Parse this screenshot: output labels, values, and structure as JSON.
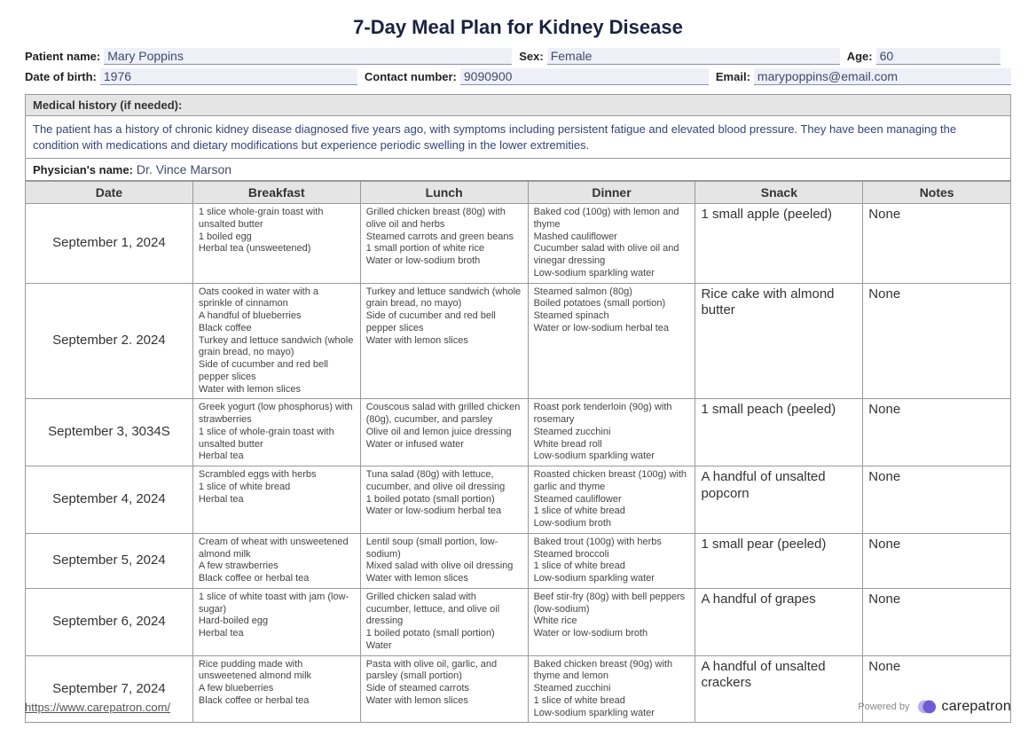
{
  "title": "7-Day Meal Plan for Kidney Disease",
  "labels": {
    "patient_name": "Patient name:",
    "sex": "Sex:",
    "age": "Age:",
    "dob": "Date of birth:",
    "contact": "Contact number:",
    "email": "Email:",
    "history": "Medical history (if needed):",
    "physician": "Physician's name:",
    "footer_url": "https://www.carepatron.com/",
    "powered": "Powered by",
    "brand": "carepatron"
  },
  "patient": {
    "name": "Mary Poppins",
    "sex": "Female",
    "age": "60",
    "dob": "1976",
    "contact": "9090900",
    "email": "marypoppins@email.com"
  },
  "history": "The patient has a history of chronic kidney disease diagnosed five years ago, with symptoms including persistent fatigue and elevated blood pressure. They have been managing the condition with medications and dietary modifications but experience periodic swelling in the lower extremities.",
  "physician": "Dr. Vince Marson",
  "columns": [
    "Date",
    "Breakfast",
    "Lunch",
    "Dinner",
    "Snack",
    "Notes"
  ],
  "rows": [
    {
      "date": "September 1, 2024",
      "bfs": "fs12",
      "breakfast": [
        "1 slice whole-grain toast with unsalted butter",
        "1 boiled egg",
        "Herbal tea (unsweetened)"
      ],
      "lfs": "fs10",
      "lunch": [
        "Grilled chicken breast (80g) with olive oil and herbs",
        "Steamed carrots and green beans",
        "1 small portion of white rice",
        "Water or low-sodium broth"
      ],
      "dfs": "fs10",
      "dinner": [
        "Baked cod (100g) with lemon and thyme",
        "Mashed cauliflower",
        "Cucumber salad with olive oil and vinegar dressing",
        "Low-sodium sparkling water"
      ],
      "snack": "1 small apple (peeled)",
      "notes": "None"
    },
    {
      "date": "September 2. 2024",
      "bfs": "fs8",
      "breakfast": [
        "Oats cooked in water with a sprinkle of cinnamon",
        "A handful of blueberries",
        "Black coffee",
        "Turkey and lettuce sandwich (whole grain bread, no mayo)",
        "Side of cucumber and red bell pepper slices",
        "Water with lemon slices"
      ],
      "lfs": "fs11",
      "lunch": [
        "Turkey and lettuce sandwich (whole grain bread, no mayo)",
        "Side of cucumber and red bell pepper slices",
        "Water with lemon slices"
      ],
      "dfs": "fs11",
      "dinner": [
        "Steamed salmon (80g)",
        "Boiled potatoes (small portion)",
        "Steamed spinach",
        "Water or low-sodium herbal tea"
      ],
      "snack": "Rice cake with almond butter",
      "notes": "None"
    },
    {
      "date": "September 3, 3034S",
      "bfs": "fs10",
      "breakfast": [
        "Greek yogurt (low phosphorus) with strawberries",
        "1 slice of whole-grain toast with unsalted butter",
        "Herbal tea"
      ],
      "lfs": "fs12",
      "lunch": [
        "Couscous salad with grilled chicken (80g), cucumber, and parsley",
        "Olive oil and lemon juice dressing",
        "Water or infused water"
      ],
      "dfs": "fs10",
      "dinner": [
        "Roast pork tenderloin (90g) with rosemary",
        "Steamed zucchini",
        "White bread roll",
        "Low-sodium sparkling water"
      ],
      "snack": "1 small peach (peeled)",
      "notes": "None"
    },
    {
      "date": "September 4, 2024",
      "bfs": "fs13",
      "breakfast": [
        "Scrambled eggs with herbs",
        "1 slice of white bread",
        "Herbal tea"
      ],
      "lfs": "fs12",
      "lunch": [
        "Tuna salad (80g) with lettuce, cucumber, and olive oil dressing",
        "1 boiled potato (small portion)",
        "Water or low-sodium herbal tea"
      ],
      "dfs": "fs10",
      "dinner": [
        "Roasted chicken breast (100g) with garlic and thyme",
        "Steamed cauliflower",
        "1 slice of white bread",
        "Low-sodium broth"
      ],
      "snack": "A handful of unsalted popcorn",
      "notes": "None"
    },
    {
      "date": "September 5, 2024",
      "bfs": "fs11",
      "breakfast": [
        "Cream of wheat with unsweetened almond milk",
        "A few strawberries",
        "Black coffee or herbal tea"
      ],
      "lfs": "fs12",
      "lunch": [
        "Lentil soup (small portion, low-sodium)",
        "Mixed salad with olive oil dressing",
        "Water with lemon slices"
      ],
      "dfs": "fs11",
      "dinner": [
        "Baked trout (100g) with herbs",
        "Steamed broccoli",
        "1 slice of white bread",
        "Low-sodium sparkling water"
      ],
      "snack": "1 small pear (peeled)",
      "notes": "None"
    },
    {
      "date": "September 6, 2024",
      "bfs": "fs11",
      "breakfast": [
        "1 slice of white toast with jam (low-sugar)",
        "Hard-boiled egg",
        "Herbal tea"
      ],
      "lfs": "fs12",
      "lunch": [
        "Grilled chicken salad with cucumber, lettuce, and olive oil dressing",
        "1 boiled potato (small portion)",
        "Water"
      ],
      "dfs": "fs11",
      "dinner": [
        "Beef stir-fry (80g) with bell peppers (low-sodium)",
        "White rice",
        "Water or low-sodium broth"
      ],
      "snack": "A handful of grapes",
      "notes": "None"
    },
    {
      "date": "September 7, 2024",
      "bfs": "fs11",
      "breakfast": [
        "Rice pudding made with unsweetened almond milk",
        "A few blueberries",
        "Black coffee or herbal tea"
      ],
      "lfs": "fs12",
      "lunch": [
        "Pasta with olive oil, garlic, and parsley (small portion)",
        "Side of steamed carrots",
        "Water with lemon slices"
      ],
      "dfs": "fs10",
      "dinner": [
        "Baked chicken breast (90g) with thyme and lemon",
        "Steamed zucchini",
        "1 slice of white bread",
        "Low-sodium sparkling water"
      ],
      "snack": "A handful of unsalted crackers",
      "notes": "None"
    }
  ],
  "colors": {
    "heading": "#1a2340",
    "value_text": "#3f4a6b",
    "value_bg": "#eef0f8",
    "value_border": "#8890b0",
    "header_bg": "#e5e5e5",
    "border": "#999999",
    "history_text": "#334477",
    "brand_purple": "#6f5bd6",
    "brand_lilac": "#b9aef0"
  }
}
